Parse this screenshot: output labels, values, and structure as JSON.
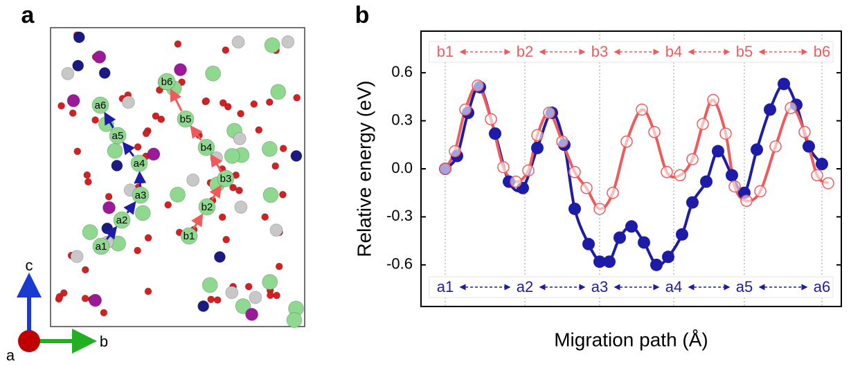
{
  "panel_labels": [
    "a",
    "b"
  ],
  "structure": {
    "a_sites": [
      "a1",
      "a2",
      "a3",
      "a4",
      "a5",
      "a6"
    ],
    "b_sites": [
      "b1",
      "b2",
      "b3",
      "b4",
      "b5",
      "b6"
    ],
    "axes": {
      "c": "c",
      "b": "b",
      "a": "a"
    }
  },
  "chart_data": {
    "type": "line",
    "xlabel": "Migration path (Å)",
    "ylabel": "Relative energy (eV)",
    "xlim": [
      -0.35,
      5.72
    ],
    "ylim": [
      -0.86,
      0.86
    ],
    "yticks": [
      -0.6,
      -0.3,
      {
        "value": 0,
        "label": "0.0"
      },
      0.3,
      0.6
    ],
    "site_x": [
      0,
      1.15,
      2.23,
      3.3,
      4.32,
      5.44
    ],
    "top_labels": [
      "b1",
      "b2",
      "b3",
      "b4",
      "b5",
      "b6"
    ],
    "top_color": "#f25a5a",
    "bottom_labels": [
      "a1",
      "a2",
      "a3",
      "a4",
      "a5",
      "a6"
    ],
    "bottom_color": "#1c1ca8",
    "series": [
      {
        "color": "#1c1ca8",
        "filled": true,
        "x": [
          0,
          0.17,
          0.33,
          0.5,
          0.72,
          0.92,
          1.12,
          1.33,
          1.54,
          1.72,
          1.87,
          2.07,
          2.23,
          2.37,
          2.52,
          2.69,
          2.87,
          3.05,
          3.22,
          3.42,
          3.57,
          3.77,
          3.94,
          4.14,
          4.32,
          4.5,
          4.69,
          4.89,
          5.07,
          5.25,
          5.44
        ],
        "values": [
          0,
          0.08,
          0.35,
          0.51,
          0.22,
          -0.08,
          -0.12,
          0.13,
          0.35,
          0.15,
          -0.25,
          -0.47,
          -0.58,
          -0.58,
          -0.43,
          -0.36,
          -0.46,
          -0.6,
          -0.55,
          -0.41,
          -0.21,
          -0.08,
          0.11,
          -0.04,
          -0.15,
          0.12,
          0.37,
          0.53,
          0.4,
          0.14,
          0.03
        ]
      },
      {
        "color": "#f25a5a",
        "filled": false,
        "x": [
          0,
          0.14,
          0.29,
          0.47,
          0.66,
          0.84,
          1.02,
          1.2,
          1.33,
          1.5,
          1.69,
          1.87,
          2.04,
          2.23,
          2.42,
          2.62,
          2.84,
          3.02,
          3.2,
          3.39,
          3.57,
          3.72,
          3.87,
          4.05,
          4.18,
          4.35,
          4.55,
          4.77,
          4.99,
          5.19,
          5.37,
          5.53
        ],
        "values": [
          0,
          0.11,
          0.37,
          0.52,
          0.31,
          0.01,
          -0.08,
          -0.01,
          0.21,
          0.35,
          0.17,
          -0.02,
          -0.12,
          -0.25,
          -0.15,
          0.17,
          0.37,
          0.23,
          -0.02,
          -0.04,
          0.06,
          0.28,
          0.43,
          0.22,
          -0.11,
          -0.2,
          -0.14,
          0.14,
          0.38,
          0.23,
          -0.04,
          -0.09
        ]
      }
    ]
  }
}
